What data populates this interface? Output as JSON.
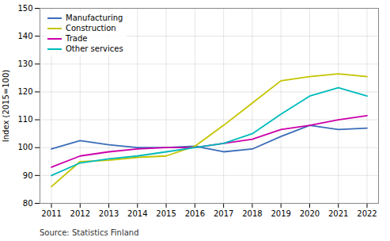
{
  "chart_data": {
    "type": "line",
    "ylabel": "Index (2015=100)",
    "caption": "Source: Statistics Finland",
    "x": [
      2011,
      2012,
      2013,
      2014,
      2015,
      2016,
      2017,
      2018,
      2019,
      2020,
      2021,
      2022
    ],
    "series": [
      {
        "name": "Manufacturing",
        "color": "#3b6dba",
        "values": [
          99.5,
          102.5,
          101.0,
          100.0,
          100.0,
          100.5,
          98.5,
          99.5,
          104.0,
          108.0,
          106.5,
          107.0
        ]
      },
      {
        "name": "Construction",
        "color": "#c4c400",
        "values": [
          86.0,
          95.0,
          95.5,
          96.5,
          97.0,
          100.5,
          108.0,
          116.0,
          124.0,
          125.5,
          126.5,
          125.5
        ]
      },
      {
        "name": "Trade",
        "color": "#cc00aa",
        "values": [
          93.0,
          97.0,
          98.5,
          99.5,
          100.0,
          100.0,
          101.5,
          103.0,
          106.5,
          108.0,
          110.0,
          111.5
        ]
      },
      {
        "name": "Other services",
        "color": "#00bbbb",
        "values": [
          90.0,
          94.5,
          96.0,
          97.0,
          98.5,
          100.0,
          101.5,
          105.0,
          112.0,
          118.5,
          121.5,
          118.5
        ]
      }
    ],
    "xlim": [
      2010.6,
      2022.4
    ],
    "xticks": [
      2011,
      2012,
      2013,
      2014,
      2015,
      2016,
      2017,
      2018,
      2019,
      2020,
      2021,
      2022
    ],
    "ylim": [
      80,
      150
    ],
    "yticks": [
      80,
      90,
      100,
      110,
      120,
      130,
      140,
      150
    ],
    "grid": true,
    "legend": "upper left"
  }
}
